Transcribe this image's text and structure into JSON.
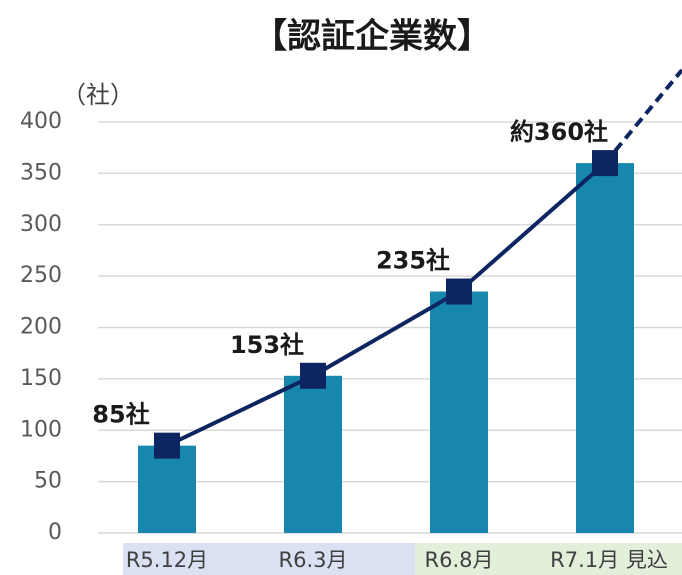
{
  "chart_data": {
    "type": "bar",
    "title": "【認証企業数】",
    "y_unit": "（社）",
    "categories": [
      "R5.12月",
      "R6.3月",
      "R6.8月",
      "R7.1月 見込"
    ],
    "values": [
      85,
      153,
      235,
      360
    ],
    "value_labels": [
      "85社",
      "153社",
      "235社",
      "約360社"
    ],
    "color": "#1787ad",
    "line": true,
    "line_color": "#0d2560",
    "projection_dashed": true,
    "category_backgrounds": [
      "#d9e1f2",
      "#d9e1f2",
      "#e2efda",
      "#e2efda"
    ],
    "ylim": [
      0,
      400
    ],
    "yticks": [
      0,
      50,
      100,
      150,
      200,
      250,
      300,
      350,
      400
    ],
    "grid": true
  }
}
